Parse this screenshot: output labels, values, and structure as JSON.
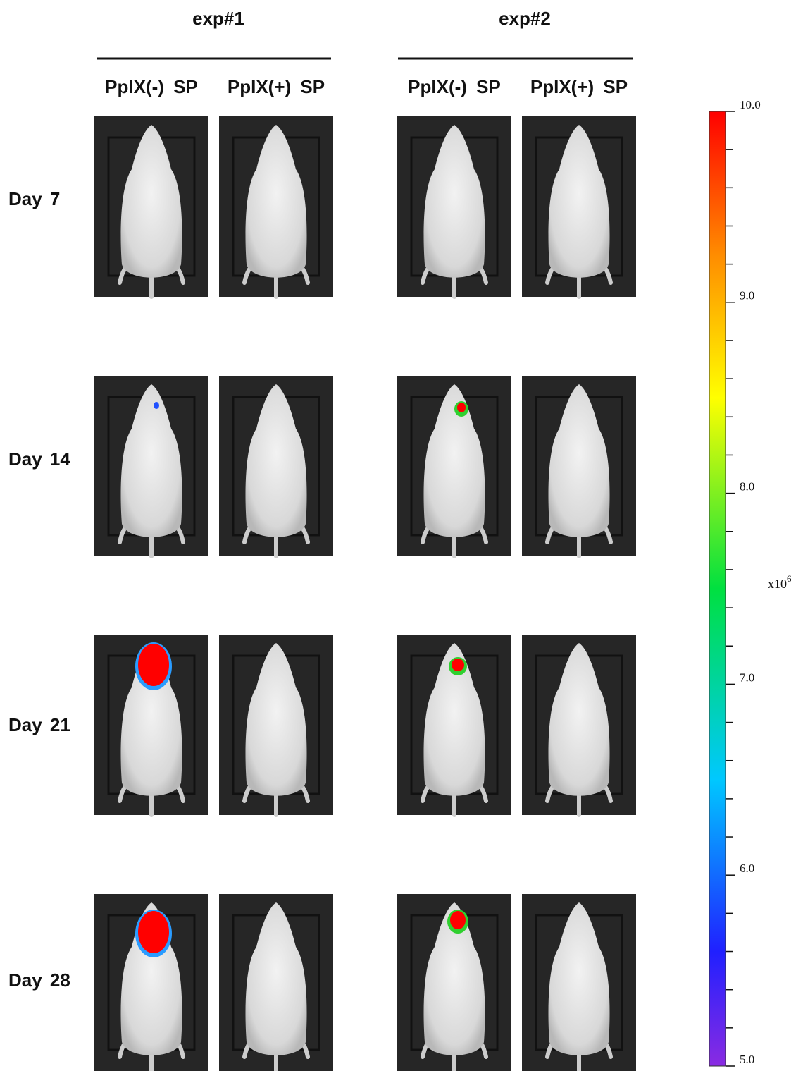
{
  "groups": [
    {
      "title": "exp#1",
      "columns": [
        "PpIX(-) SP",
        "PpIX(+) SP"
      ]
    },
    {
      "title": "exp#2",
      "columns": [
        "PpIX(-) SP",
        "PpIX(+) SP"
      ]
    }
  ],
  "rows": [
    "Day 7",
    "Day 14",
    "Day 21",
    "Day 28"
  ],
  "colorbar": {
    "range": [
      5,
      10
    ],
    "ticks": [
      {
        "value": 10,
        "label": "10.0"
      },
      {
        "value": 9,
        "label": "9.0"
      },
      {
        "value": 8,
        "label": "8.0"
      },
      {
        "value": 7,
        "label": "7.0"
      },
      {
        "value": 6,
        "label": "6.0"
      },
      {
        "value": 5,
        "label": "5.0"
      }
    ],
    "minor_ticks": [
      9.8,
      9.6,
      9.4,
      9.2,
      8.8,
      8.6,
      8.4,
      8.2,
      7.8,
      7.6,
      7.4,
      7.2,
      6.8,
      6.6,
      6.4,
      6.2,
      5.8,
      5.6,
      5.4,
      5.2
    ],
    "unit": {
      "base": "x10",
      "exponent": "6"
    }
  }
}
